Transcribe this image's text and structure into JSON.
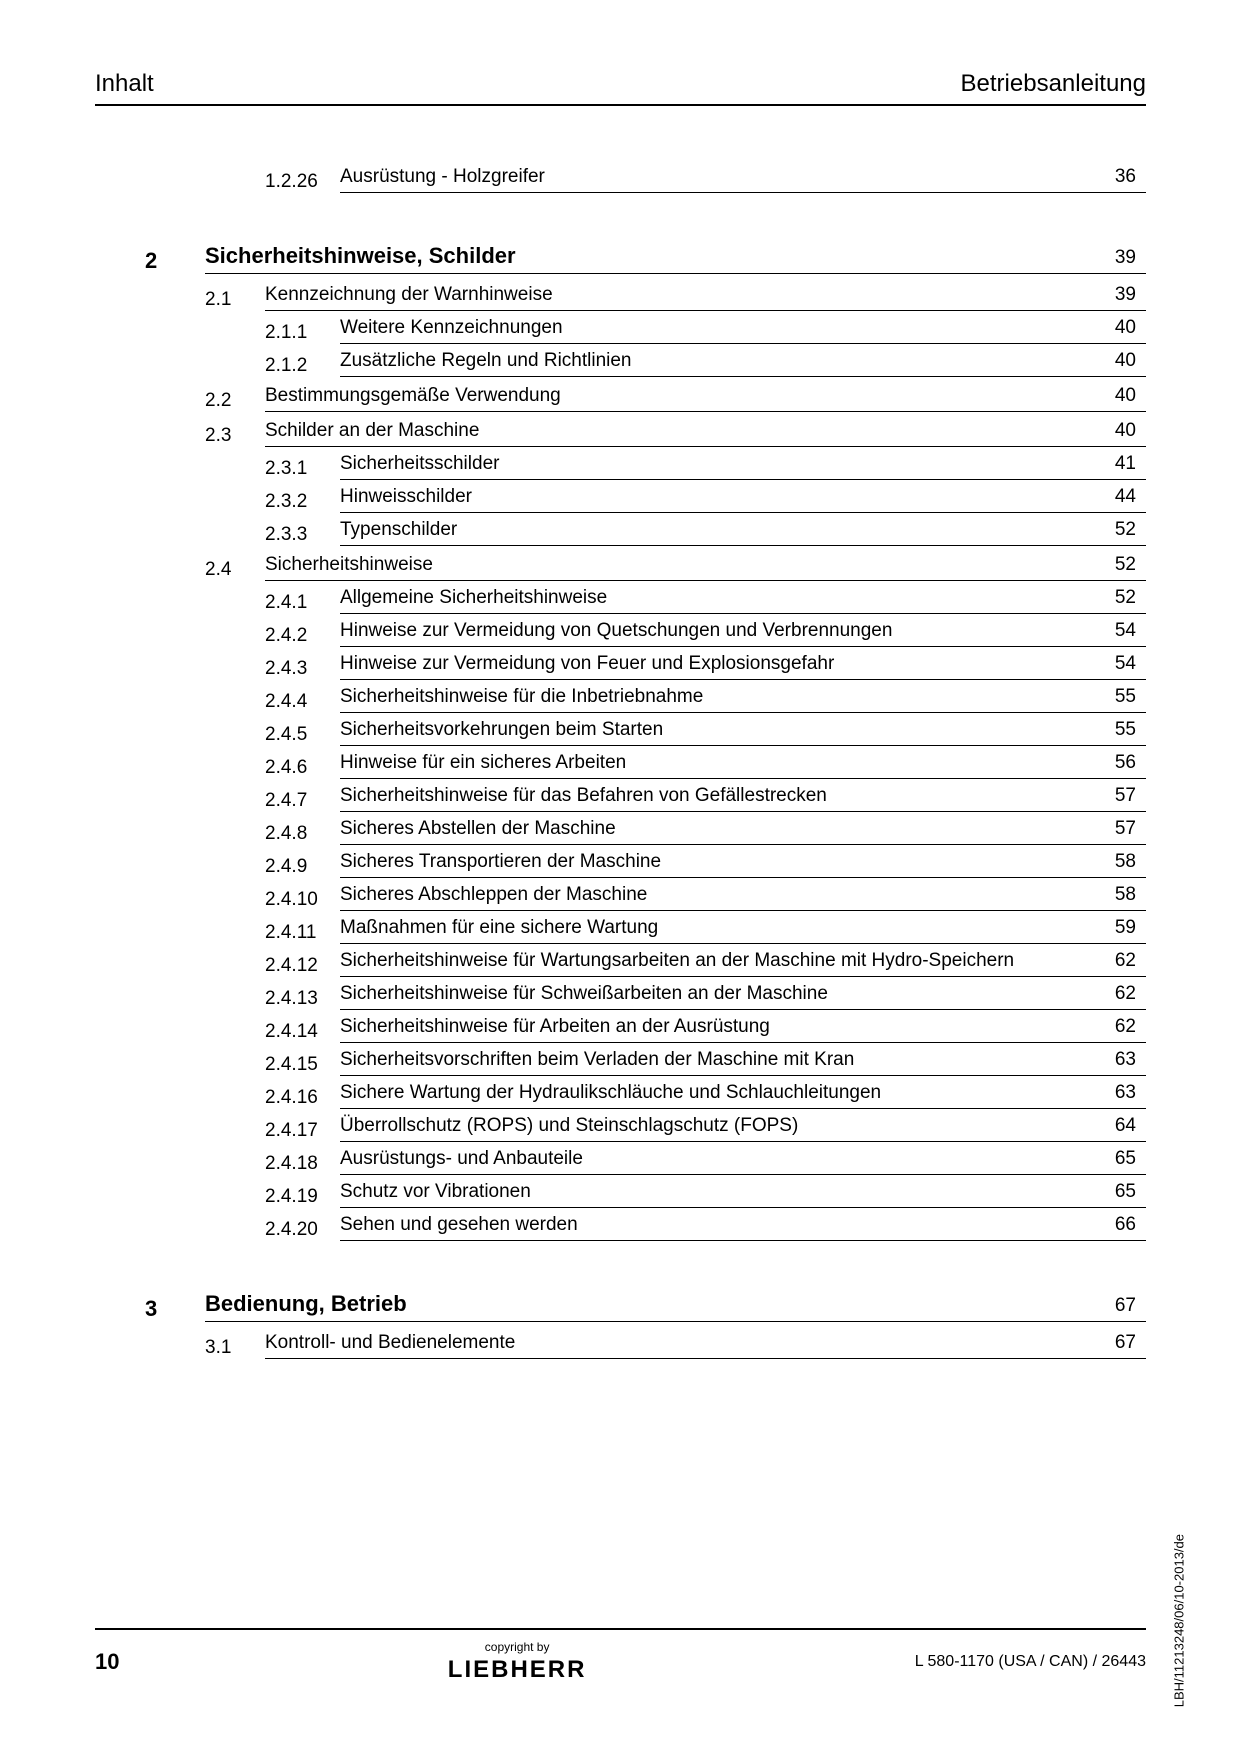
{
  "header": {
    "left": "Inhalt",
    "right": "Betriebsanleitung"
  },
  "preItems": [
    {
      "num": "1.2.26",
      "title": "Ausrüstung - Holzgreifer",
      "page": "36"
    }
  ],
  "chapters": [
    {
      "num": "2",
      "title": "Sicherheitshinweise, Schilder",
      "page": "39",
      "sections": [
        {
          "num": "2.1",
          "title": "Kennzeichnung der Warnhinweise",
          "page": "39",
          "subs": [
            {
              "num": "2.1.1",
              "title": "Weitere Kennzeichnungen",
              "page": "40"
            },
            {
              "num": "2.1.2",
              "title": "Zusätzliche Regeln und Richtlinien",
              "page": "40"
            }
          ]
        },
        {
          "num": "2.2",
          "title": "Bestimmungsgemäße Verwendung",
          "page": "40",
          "subs": []
        },
        {
          "num": "2.3",
          "title": "Schilder an der Maschine",
          "page": "40",
          "subs": [
            {
              "num": "2.3.1",
              "title": "Sicherheitsschilder",
              "page": "41"
            },
            {
              "num": "2.3.2",
              "title": "Hinweisschilder",
              "page": "44"
            },
            {
              "num": "2.3.3",
              "title": "Typenschilder",
              "page": "52"
            }
          ]
        },
        {
          "num": "2.4",
          "title": "Sicherheitshinweise",
          "page": "52",
          "subs": [
            {
              "num": "2.4.1",
              "title": "Allgemeine Sicherheitshinweise",
              "page": "52"
            },
            {
              "num": "2.4.2",
              "title": "Hinweise zur Vermeidung von Quetschungen und Verbrennungen",
              "page": "54"
            },
            {
              "num": "2.4.3",
              "title": "Hinweise zur Vermeidung von Feuer und Explosionsgefahr",
              "page": "54"
            },
            {
              "num": "2.4.4",
              "title": "Sicherheitshinweise für die Inbetriebnahme",
              "page": "55"
            },
            {
              "num": "2.4.5",
              "title": "Sicherheitsvorkehrungen beim Starten",
              "page": "55"
            },
            {
              "num": "2.4.6",
              "title": "Hinweise für ein sicheres Arbeiten",
              "page": "56"
            },
            {
              "num": "2.4.7",
              "title": "Sicherheitshinweise für das Befahren von Gefällestrecken",
              "page": "57"
            },
            {
              "num": "2.4.8",
              "title": "Sicheres Abstellen der Maschine",
              "page": "57"
            },
            {
              "num": "2.4.9",
              "title": "Sicheres Transportieren der Maschine",
              "page": "58"
            },
            {
              "num": "2.4.10",
              "title": "Sicheres Abschleppen der Maschine",
              "page": "58"
            },
            {
              "num": "2.4.11",
              "title": "Maßnahmen für eine sichere Wartung",
              "page": "59"
            },
            {
              "num": "2.4.12",
              "title": "Sicherheitshinweise für Wartungsarbeiten an der Maschine mit Hydro-Speichern",
              "page": "62"
            },
            {
              "num": "2.4.13",
              "title": "Sicherheitshinweise für Schweißarbeiten an der Maschine",
              "page": "62"
            },
            {
              "num": "2.4.14",
              "title": "Sicherheitshinweise für Arbeiten an der Ausrüstung",
              "page": "62"
            },
            {
              "num": "2.4.15",
              "title": "Sicherheitsvorschriften beim Verladen der Maschine mit Kran",
              "page": "63"
            },
            {
              "num": "2.4.16",
              "title": "Sichere Wartung der Hydraulikschläuche und Schlauchleitungen",
              "page": "63"
            },
            {
              "num": "2.4.17",
              "title": "Überrollschutz (ROPS) und Steinschlagschutz (FOPS)",
              "page": "64"
            },
            {
              "num": "2.4.18",
              "title": "Ausrüstungs- und Anbauteile",
              "page": "65"
            },
            {
              "num": "2.4.19",
              "title": "Schutz vor Vibrationen",
              "page": "65"
            },
            {
              "num": "2.4.20",
              "title": "Sehen und gesehen werden",
              "page": "66"
            }
          ]
        }
      ]
    },
    {
      "num": "3",
      "title": "Bedienung, Betrieb",
      "page": "67",
      "sections": [
        {
          "num": "3.1",
          "title": "Kontroll- und Bedienelemente",
          "page": "67",
          "subs": []
        }
      ]
    }
  ],
  "sideText": "LBH/11213248/06/10-2013/de",
  "footer": {
    "pageNumber": "10",
    "copyright": "copyright by",
    "brand": "LIEBHERR",
    "right": "L 580-1170 (USA / CAN) / 26443"
  }
}
